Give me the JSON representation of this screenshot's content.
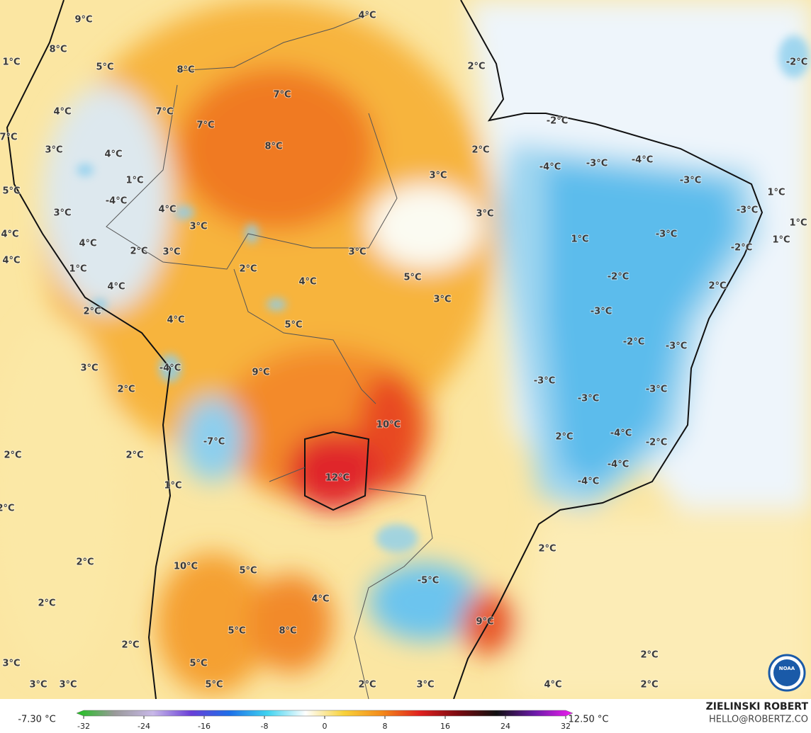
{
  "map": {
    "labels": [
      "9°C",
      "4°C",
      "8°C",
      "1°C",
      "5°C",
      "8°C",
      "2°C",
      "-2°C",
      "7°C",
      "4°C",
      "7°C",
      "7°C",
      "-2°C",
      "7°C",
      "8°C",
      "2°C",
      "3°C",
      "4°C",
      "-4°C",
      "-3°C",
      "-4°C",
      "3°C",
      "1°C",
      "-3°C",
      "5°C",
      "-4°C",
      "4°C",
      "3°C",
      "3°C",
      "-3°C",
      "1°C",
      "1°C",
      "3°C",
      "4°C",
      "4°C",
      "1°C",
      "-3°C",
      "-2°C",
      "1°C",
      "2°C",
      "3°C",
      "3°C",
      "4°C",
      "1°C",
      "2°C",
      "5°C",
      "-2°C",
      "4°C",
      "2°C",
      "4°C",
      "3°C",
      "2°C",
      "-3°C",
      "4°C",
      "5°C",
      "-2°C",
      "-3°C",
      "3°C",
      "-4°C",
      "9°C",
      "-3°C",
      "2°C",
      "-3°C",
      "-3°C",
      "10°C",
      "-4°C",
      "-2°C",
      "-7°C",
      "2°C",
      "2°C",
      "2°C",
      "-4°C",
      "12°C",
      "-4°C",
      "1°C",
      "2°C",
      "2°C",
      "2°C",
      "10°C",
      "5°C",
      "-5°C",
      "4°C",
      "2°C",
      "9°C",
      "5°C",
      "8°C",
      "2°C",
      "2°C",
      "3°C",
      "5°C",
      "3°C",
      "3°C",
      "5°C",
      "2°C",
      "3°C",
      "4°C",
      "2°C"
    ],
    "logo": "NOAA"
  },
  "colorbar": {
    "min_label": "-7.30 °C",
    "max_label": "12.50 °C",
    "lim": [
      -32,
      32
    ],
    "ticks": [
      -32,
      -24,
      -16,
      -8,
      0,
      8,
      16,
      24,
      32
    ],
    "colors": [
      "#1fc21f",
      "#9a9a9a",
      "#c8b8e8",
      "#6a3fd8",
      "#1e6fe8",
      "#3fd3f0",
      "#ffffff",
      "#f8d23a",
      "#f48a1a",
      "#e0201e",
      "#7a0a10",
      "#101010",
      "#6a1aa8",
      "#f01ef0"
    ]
  },
  "credit": {
    "name": "ZIELINSKI ROBERT",
    "contact": "HELLO@ROBERTZ.CO"
  }
}
